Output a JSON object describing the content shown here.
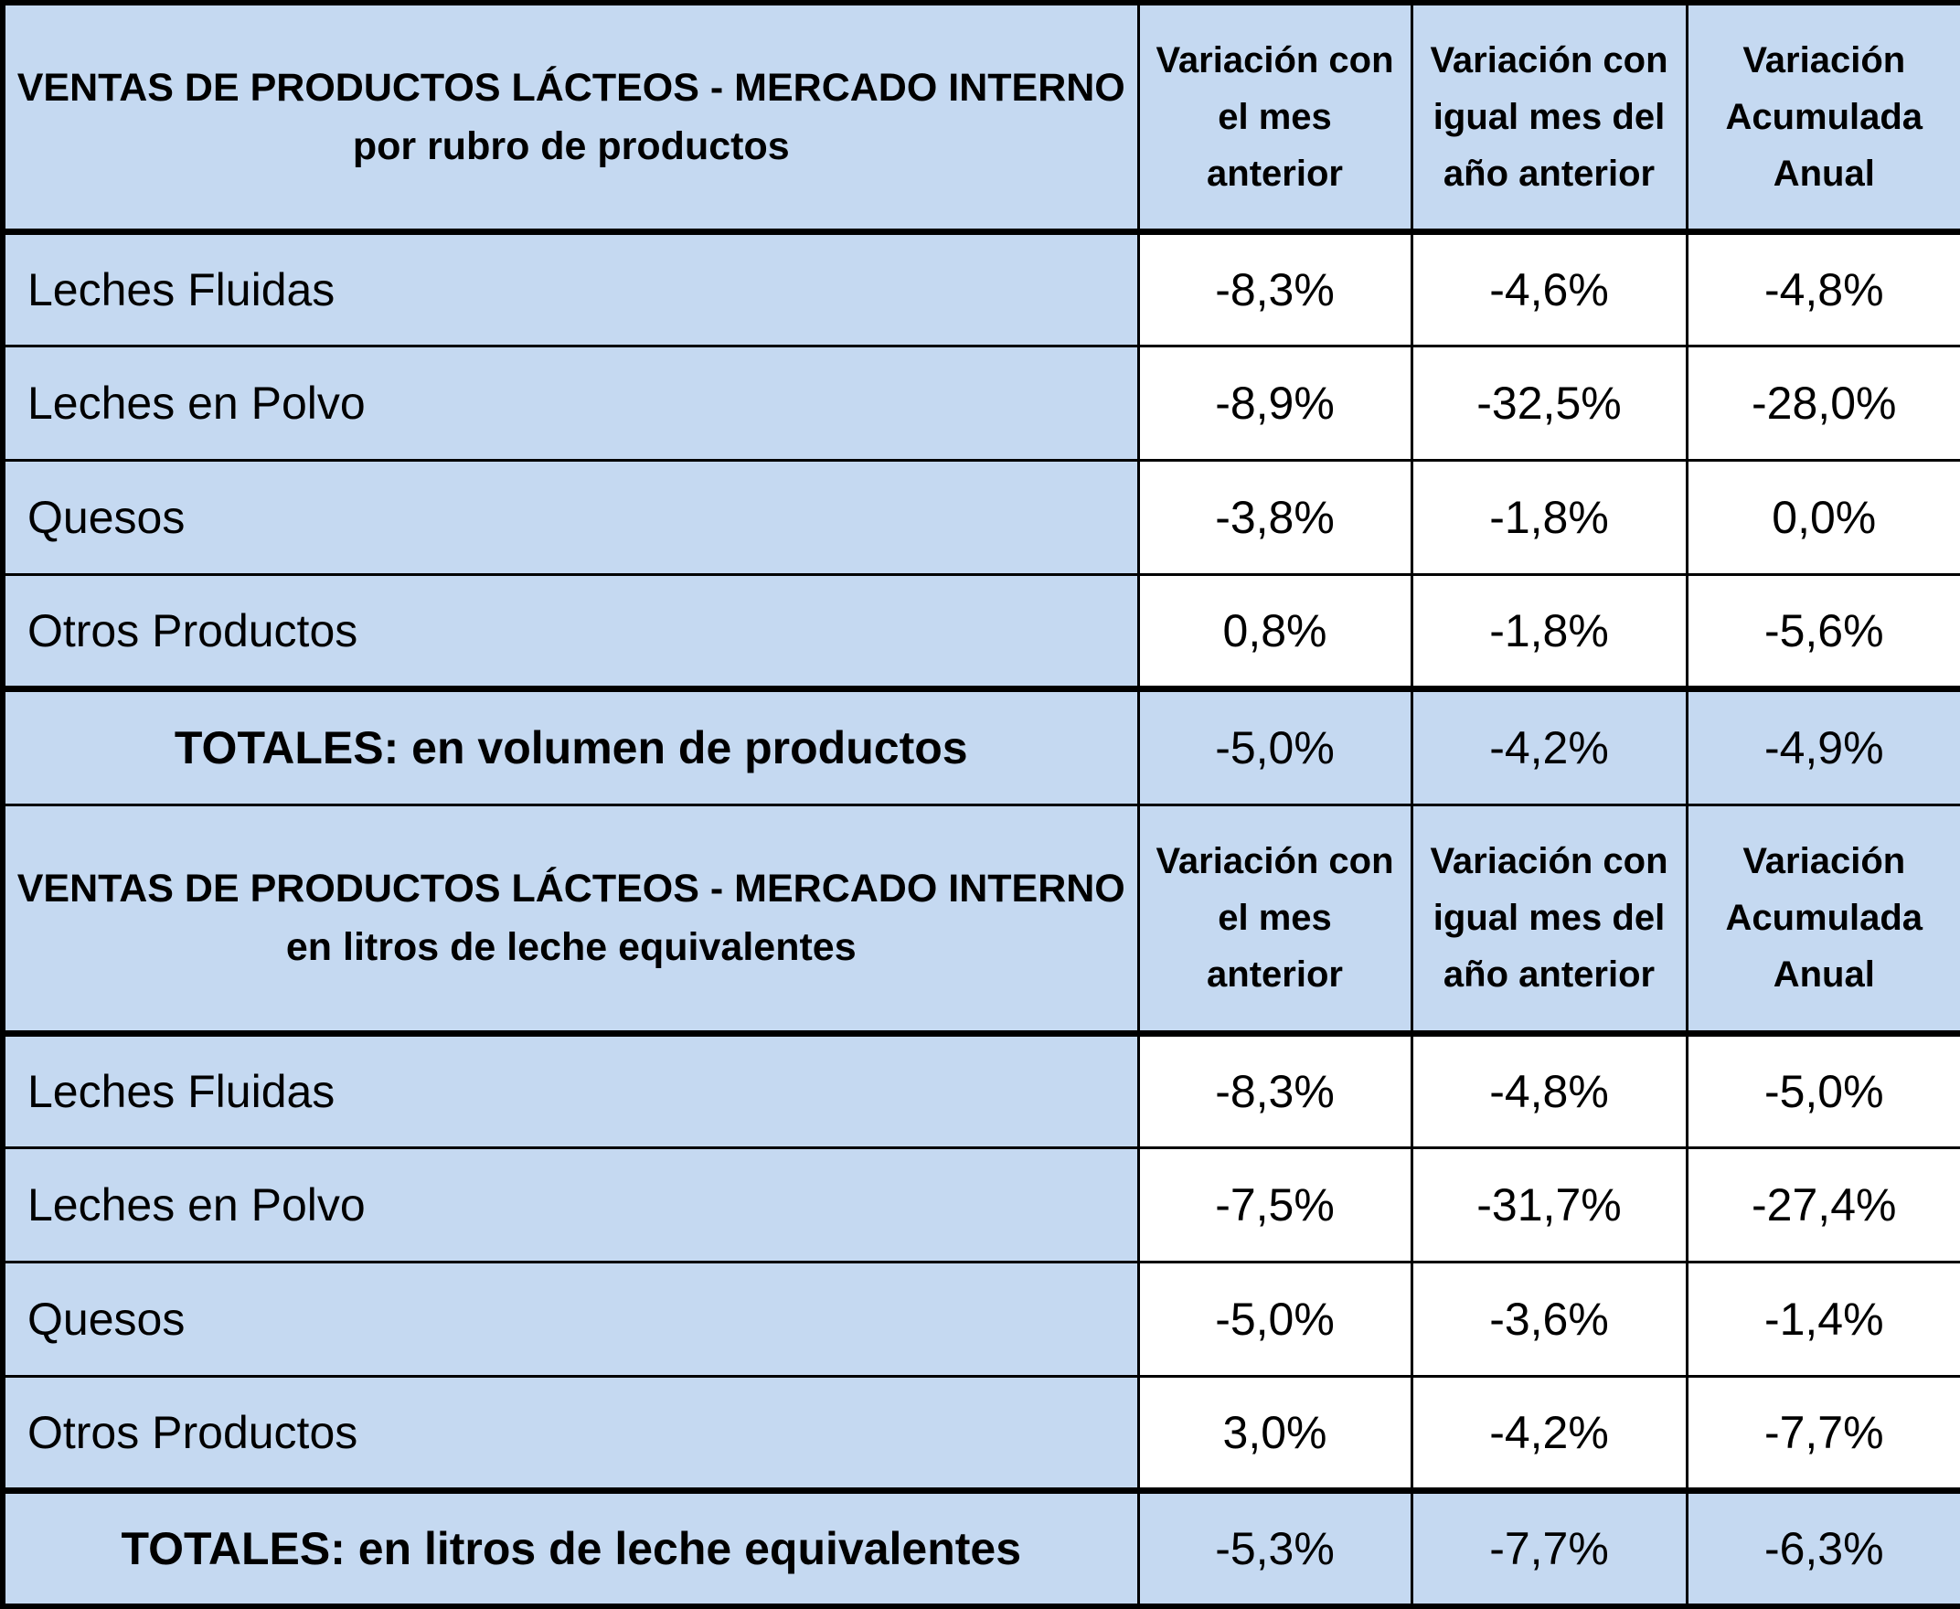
{
  "colors": {
    "header_fill": "#c5d9f1",
    "value_fill": "#ffffff",
    "border": "#000000"
  },
  "table1": {
    "title_line1": "VENTAS DE PRODUCTOS LÁCTEOS - MERCADO INTERNO",
    "title_line2": "por rubro de productos",
    "col1": [
      "Variación con",
      "el mes",
      "anterior"
    ],
    "col2": [
      "Variación con",
      "igual mes del",
      "año anterior"
    ],
    "col3": [
      "Variación",
      "Acumulada",
      "Anual"
    ],
    "rows": [
      {
        "label": "Leches Fluidas",
        "v1": "-8,3%",
        "v2": "-4,6%",
        "v3": "-4,8%"
      },
      {
        "label": "Leches en Polvo",
        "v1": "-8,9%",
        "v2": "-32,5%",
        "v3": "-28,0%"
      },
      {
        "label": "Quesos",
        "v1": "-3,8%",
        "v2": "-1,8%",
        "v3": "0,0%"
      },
      {
        "label": "Otros Productos",
        "v1": "0,8%",
        "v2": "-1,8%",
        "v3": "-5,6%"
      }
    ],
    "total": {
      "label": "TOTALES: en volumen de productos",
      "v1": "-5,0%",
      "v2": "-4,2%",
      "v3": "-4,9%"
    }
  },
  "table2": {
    "title_line1": "VENTAS DE PRODUCTOS LÁCTEOS - MERCADO INTERNO",
    "title_line2": "en litros de leche equivalentes",
    "col1": [
      "Variación con",
      "el mes",
      "anterior"
    ],
    "col2": [
      "Variación con",
      "igual mes del",
      "año anterior"
    ],
    "col3": [
      "Variación",
      "Acumulada",
      "Anual"
    ],
    "rows": [
      {
        "label": "Leches Fluidas",
        "v1": "-8,3%",
        "v2": "-4,8%",
        "v3": "-5,0%"
      },
      {
        "label": "Leches en Polvo",
        "v1": "-7,5%",
        "v2": "-31,7%",
        "v3": "-27,4%"
      },
      {
        "label": "Quesos",
        "v1": "-5,0%",
        "v2": "-3,6%",
        "v3": "-1,4%"
      },
      {
        "label": "Otros Productos",
        "v1": "3,0%",
        "v2": "-4,2%",
        "v3": "-7,7%"
      }
    ],
    "total": {
      "label": "TOTALES: en litros de leche equivalentes",
      "v1": "-5,3%",
      "v2": "-7,7%",
      "v3": "-6,3%"
    }
  }
}
